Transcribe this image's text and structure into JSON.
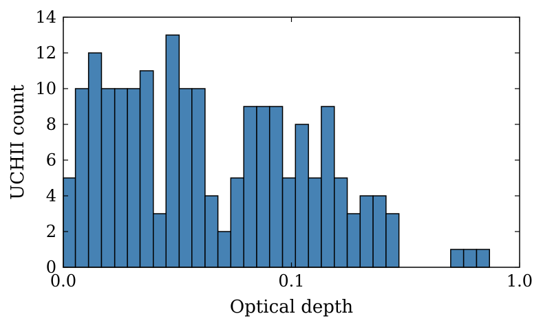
{
  "chart_data": {
    "type": "bar",
    "xlabel": "Optical depth",
    "ylabel": "UCHII count",
    "x_scale": "log",
    "xlim": [
      0.01,
      1.0
    ],
    "ylim": [
      0,
      14
    ],
    "grid": false,
    "bar_color": "#4682b4",
    "edge_color": "#000000",
    "x_ticks": [
      {
        "value": 0.01,
        "label": "0.0"
      },
      {
        "value": 0.1,
        "label": "0.1"
      },
      {
        "value": 1.0,
        "label": "1.0"
      }
    ],
    "y_ticks": [
      0,
      2,
      4,
      6,
      8,
      10,
      12,
      14
    ],
    "bins": [
      {
        "x0": 0.01,
        "x1": 0.0113,
        "count": 5
      },
      {
        "x0": 0.0113,
        "x1": 0.0129,
        "count": 10
      },
      {
        "x0": 0.0129,
        "x1": 0.0147,
        "count": 12
      },
      {
        "x0": 0.0147,
        "x1": 0.0168,
        "count": 10
      },
      {
        "x0": 0.0168,
        "x1": 0.0191,
        "count": 10
      },
      {
        "x0": 0.0191,
        "x1": 0.0217,
        "count": 10
      },
      {
        "x0": 0.0217,
        "x1": 0.0248,
        "count": 11
      },
      {
        "x0": 0.0248,
        "x1": 0.0282,
        "count": 3
      },
      {
        "x0": 0.0282,
        "x1": 0.0322,
        "count": 13
      },
      {
        "x0": 0.0322,
        "x1": 0.0366,
        "count": 10
      },
      {
        "x0": 0.0366,
        "x1": 0.0418,
        "count": 10
      },
      {
        "x0": 0.0418,
        "x1": 0.0476,
        "count": 4
      },
      {
        "x0": 0.0476,
        "x1": 0.0542,
        "count": 2
      },
      {
        "x0": 0.0542,
        "x1": 0.0618,
        "count": 5
      },
      {
        "x0": 0.0618,
        "x1": 0.0704,
        "count": 9
      },
      {
        "x0": 0.0704,
        "x1": 0.0802,
        "count": 9
      },
      {
        "x0": 0.0802,
        "x1": 0.0914,
        "count": 9
      },
      {
        "x0": 0.0914,
        "x1": 0.1041,
        "count": 5
      },
      {
        "x0": 0.1041,
        "x1": 0.1187,
        "count": 8
      },
      {
        "x0": 0.1187,
        "x1": 0.1352,
        "count": 5
      },
      {
        "x0": 0.1352,
        "x1": 0.1541,
        "count": 9
      },
      {
        "x0": 0.1541,
        "x1": 0.1756,
        "count": 5
      },
      {
        "x0": 0.1756,
        "x1": 0.2,
        "count": 3
      },
      {
        "x0": 0.2,
        "x1": 0.2279,
        "count": 4
      },
      {
        "x0": 0.2279,
        "x1": 0.2597,
        "count": 4
      },
      {
        "x0": 0.2597,
        "x1": 0.2959,
        "count": 3
      },
      {
        "x0": 0.2959,
        "x1": 0.3372,
        "count": 0
      },
      {
        "x0": 0.3372,
        "x1": 0.3842,
        "count": 0
      },
      {
        "x0": 0.3842,
        "x1": 0.4378,
        "count": 0
      },
      {
        "x0": 0.4378,
        "x1": 0.4988,
        "count": 0
      },
      {
        "x0": 0.4988,
        "x1": 0.5684,
        "count": 1
      },
      {
        "x0": 0.5684,
        "x1": 0.6477,
        "count": 1
      },
      {
        "x0": 0.6477,
        "x1": 0.738,
        "count": 1
      }
    ]
  }
}
